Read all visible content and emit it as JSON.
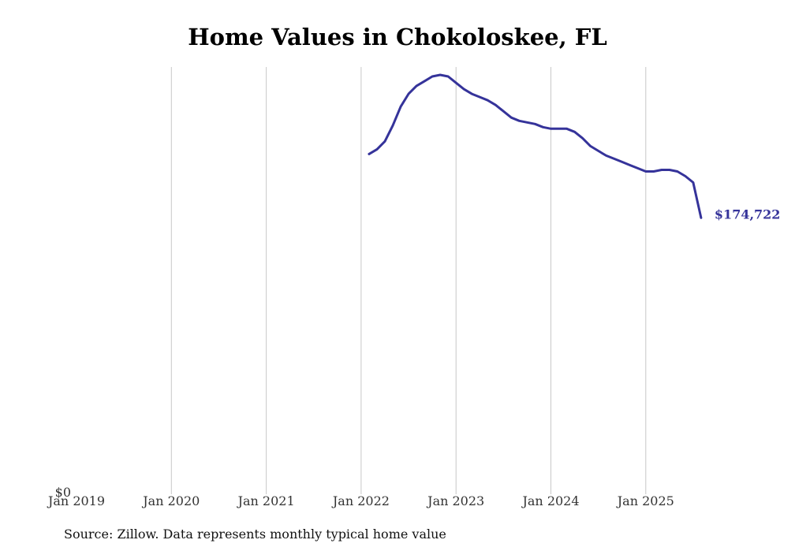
{
  "chart_data": {
    "type": "line",
    "title": "Home Values in Chokoloskee, FL",
    "xlabel": "",
    "ylabel": "",
    "x_ticks": [
      "Jan 2019",
      "Jan 2020",
      "Jan 2021",
      "Jan 2022",
      "Jan 2023",
      "Jan 2024",
      "Jan 2025"
    ],
    "y_ticks": [
      "$0"
    ],
    "ylim": [
      0,
      270000
    ],
    "grid": "vertical",
    "series": [
      {
        "name": "Typical home value",
        "color": "#35339a",
        "end_label": "$174,722",
        "x": [
          2022.083,
          2022.167,
          2022.25,
          2022.333,
          2022.417,
          2022.5,
          2022.583,
          2022.667,
          2022.75,
          2022.833,
          2022.917,
          2023.0,
          2023.083,
          2023.167,
          2023.25,
          2023.333,
          2023.417,
          2023.5,
          2023.583,
          2023.667,
          2023.75,
          2023.833,
          2023.917,
          2024.0,
          2024.083,
          2024.167,
          2024.25,
          2024.333,
          2024.417,
          2024.5,
          2024.583,
          2024.667,
          2024.75,
          2024.833,
          2024.917,
          2025.0,
          2025.083,
          2025.167,
          2025.25,
          2025.333,
          2025.417,
          2025.5,
          2025.583
        ],
        "values": [
          215000,
          218000,
          223000,
          233000,
          245000,
          253000,
          258000,
          261000,
          264000,
          265000,
          264000,
          260000,
          256000,
          253000,
          251000,
          249000,
          246000,
          242000,
          238000,
          236000,
          235000,
          234000,
          232000,
          231000,
          231000,
          231000,
          229000,
          225000,
          220000,
          217000,
          214000,
          212000,
          210000,
          208000,
          206000,
          204000,
          204000,
          205000,
          205000,
          204000,
          201000,
          197000,
          174722
        ]
      }
    ]
  },
  "source_text": "Source: Zillow. Data represents monthly typical home value"
}
